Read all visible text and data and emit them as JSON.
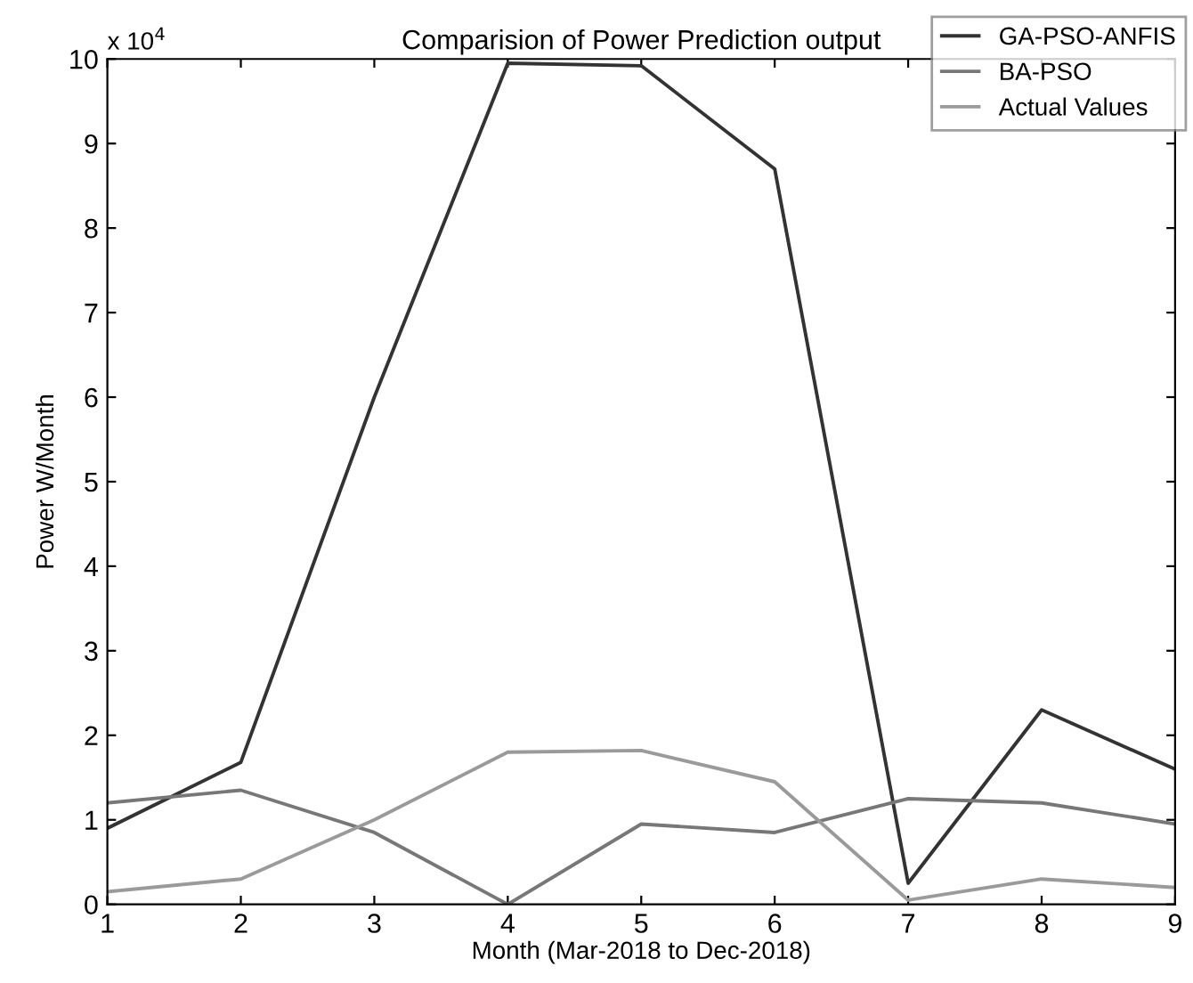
{
  "chart_data": {
    "type": "line",
    "title": "Comparision of Power Prediction output",
    "xlabel": "Month (Mar-2018 to Dec-2018)",
    "ylabel": "Power W/Month",
    "annotations": [
      "x 10$^{4}$"
    ],
    "x": [
      1,
      2,
      3,
      4,
      5,
      6,
      7,
      8,
      9
    ],
    "series": [
      {
        "name": "GA-PSO-ANFIS",
        "color": "#333333",
        "values": [
          0.9,
          1.68,
          6.0,
          9.95,
          9.92,
          8.7,
          0.25,
          2.3,
          1.6
        ]
      },
      {
        "name": "BA-PSO",
        "color": "#777777",
        "values": [
          1.2,
          1.35,
          0.85,
          0.0,
          0.95,
          0.85,
          1.25,
          1.2,
          0.95
        ]
      },
      {
        "name": "Actual Values",
        "color": "#9a9a9a",
        "values": [
          0.15,
          0.3,
          1.0,
          1.8,
          1.82,
          1.45,
          0.05,
          0.3,
          0.2
        ]
      }
    ],
    "xlim": [
      1,
      9
    ],
    "xticks": [
      1,
      2,
      3,
      4,
      5,
      6,
      7,
      8,
      9
    ],
    "ylim": [
      0,
      10
    ],
    "yticks": [
      0,
      1,
      2,
      3,
      4,
      5,
      6,
      7,
      8,
      9,
      10
    ],
    "grid": false,
    "legend": "top right",
    "marker": "none",
    "line_style": "solid"
  }
}
